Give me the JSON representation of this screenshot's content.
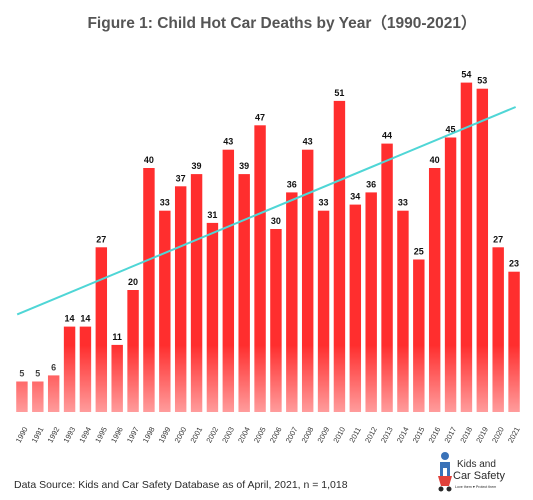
{
  "chart_data": {
    "type": "bar",
    "title": "Figure 1: Child Hot Car Deaths by Year（1990-2021）",
    "xlabel": "",
    "ylabel": "",
    "ylim": [
      0,
      60
    ],
    "grid": false,
    "legend": "none",
    "categories": [
      "1990",
      "1991",
      "1992",
      "1993",
      "1994",
      "1995",
      "1996",
      "1997",
      "1998",
      "1999",
      "2000",
      "2001",
      "2002",
      "2003",
      "2004",
      "2005",
      "2006",
      "2007",
      "2008",
      "2009",
      "2010",
      "2011",
      "2012",
      "2013",
      "2014",
      "2015",
      "2016",
      "2017",
      "2018",
      "2019",
      "2020",
      "2021"
    ],
    "values": [
      5,
      5,
      6,
      14,
      14,
      27,
      11,
      20,
      40,
      33,
      37,
      39,
      31,
      43,
      39,
      47,
      30,
      36,
      43,
      33,
      51,
      34,
      36,
      44,
      33,
      25,
      40,
      45,
      54,
      53,
      27,
      23
    ],
    "trendline": {
      "type": "linear",
      "start": 16,
      "end": 50,
      "color": "#4fd6d6"
    },
    "bar_color": "#ff2e2e"
  },
  "source_text": "Data Source: Kids and Car Safety Database as of April, 2021,  n = 1,018",
  "logo": {
    "line1": "Kids and",
    "line2": "Car Safety",
    "tagline": "Love them ♥ Protect them"
  }
}
